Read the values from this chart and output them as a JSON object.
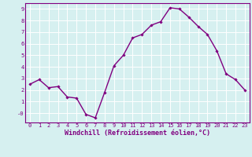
{
  "x": [
    0,
    1,
    2,
    3,
    4,
    5,
    6,
    7,
    8,
    9,
    10,
    11,
    12,
    13,
    14,
    15,
    16,
    17,
    18,
    19,
    20,
    21,
    22,
    23
  ],
  "y": [
    2.5,
    2.9,
    2.2,
    2.3,
    1.4,
    1.3,
    -0.1,
    -0.4,
    1.8,
    4.1,
    5.0,
    6.5,
    6.8,
    7.6,
    7.9,
    9.1,
    9.0,
    8.3,
    7.5,
    6.8,
    5.4,
    3.4,
    2.9,
    2.0
  ],
  "line_color": "#800080",
  "marker": "D",
  "marker_size": 1.8,
  "bg_color": "#d6f0f0",
  "grid_color": "#b0dede",
  "axis_color": "#800080",
  "xlabel": "Windchill (Refroidissement éolien,°C)",
  "xlabel_color": "#800080",
  "ylim": [
    -0.8,
    9.5
  ],
  "xlim": [
    -0.5,
    23.5
  ],
  "yticks": [
    0,
    1,
    2,
    3,
    4,
    5,
    6,
    7,
    8,
    9
  ],
  "ytick_labels": [
    "-0",
    "1",
    "2",
    "3",
    "4",
    "5",
    "6",
    "7",
    "8",
    "9"
  ],
  "xticks": [
    0,
    1,
    2,
    3,
    4,
    5,
    6,
    7,
    8,
    9,
    10,
    11,
    12,
    13,
    14,
    15,
    16,
    17,
    18,
    19,
    20,
    21,
    22,
    23
  ],
  "tick_fontsize": 5.0,
  "xlabel_fontsize": 6.0,
  "line_width": 1.0
}
